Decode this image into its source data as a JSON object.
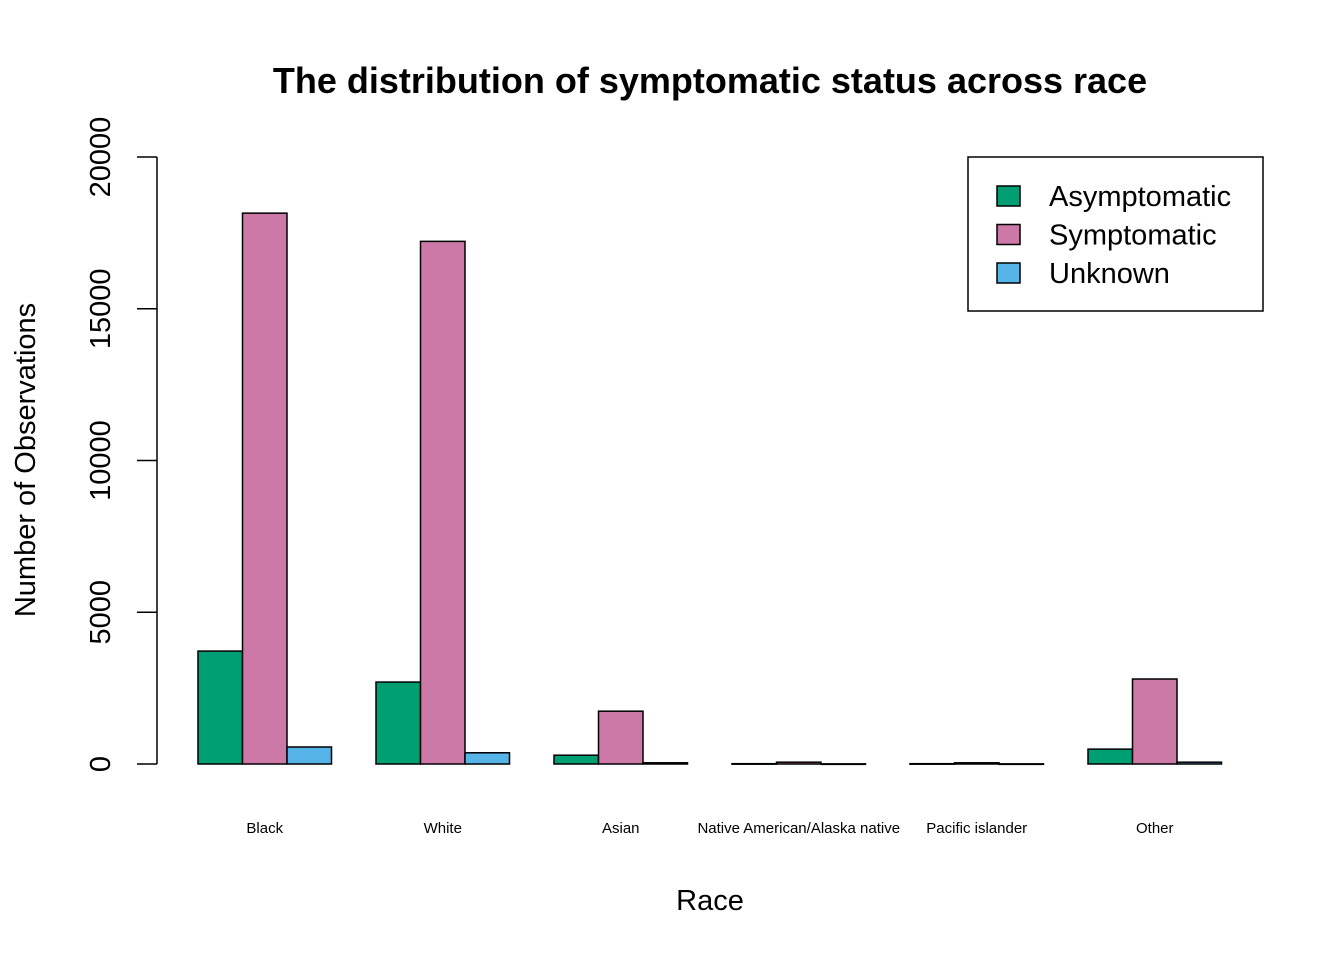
{
  "chart_data": {
    "type": "bar",
    "title": "The distribution of symptomatic status across race",
    "xlabel": "Race",
    "ylabel": "Number of Observations",
    "categories": [
      "Black",
      "White",
      "Asian",
      "Native American/Alaska native",
      "Pacific islander",
      "Other"
    ],
    "series": [
      {
        "name": "Asymptomatic",
        "color": "#009E73",
        "values": [
          3720,
          2700,
          290,
          10,
          10,
          490
        ]
      },
      {
        "name": "Symptomatic",
        "color": "#CC79A7",
        "values": [
          18150,
          17220,
          1740,
          60,
          40,
          2800
        ]
      },
      {
        "name": "Unknown",
        "color": "#56B4E9",
        "values": [
          560,
          370,
          40,
          5,
          5,
          60
        ]
      }
    ],
    "ylim": [
      0,
      20000
    ],
    "yticks": [
      0,
      5000,
      10000,
      15000,
      20000
    ],
    "ytick_labels": [
      "0",
      "5000",
      "10000",
      "15000",
      "20000"
    ],
    "legend_position": "top-right",
    "grid": false
  }
}
